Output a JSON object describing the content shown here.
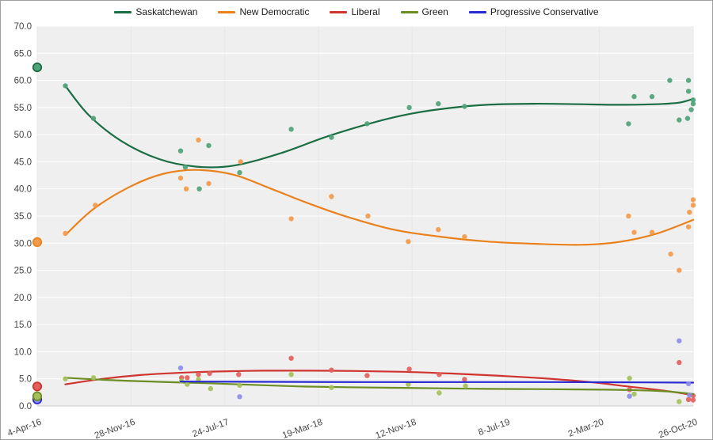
{
  "window": {
    "background": "#ffffff",
    "border_color": "#9f9f9f"
  },
  "chart_data": {
    "type": "scatter",
    "title": "",
    "description": "Saskatchewan provincial polling: poll scatter points with smoothed trend line per party; circled markers at 4-Apr-16 are the 2016 election results",
    "legend_position": "top",
    "grid": true,
    "plot_bg": "#efefef",
    "grid_color_h": "#ffffff",
    "grid_color_v": "#e7e7e7",
    "axis_line_color": "#d2d2d2",
    "tick_text_color": "#444444",
    "ylim": [
      0,
      70
    ],
    "y_tick_step": 5,
    "y_tick_labels": [
      "0.0",
      "5.0",
      "10.0",
      "15.0",
      "20.0",
      "25.0",
      "30.0",
      "35.0",
      "40.0",
      "45.0",
      "50.0",
      "55.0",
      "60.0",
      "65.0",
      "70.0"
    ],
    "x_ticks": [
      "4-Apr-16",
      "28-Nov-16",
      "24-Jul-17",
      "19-Mar-18",
      "12-Nov-18",
      "8-Jul-19",
      "2-Mar-20",
      "26-Oct-20"
    ],
    "x_note": "x values are in tick units: 0 = 4-Apr-16, 7 = 26-Oct-20, linear in time (one tick = 238 days)",
    "series": [
      {
        "name": "Saskatchewan",
        "color": "#1b6d43",
        "marker_color": "#4fa377",
        "election_2016": 62.4,
        "trend": [
          [
            0.3,
            59
          ],
          [
            0.55,
            53.6
          ],
          [
            0.9,
            48.8
          ],
          [
            1.3,
            45.5
          ],
          [
            1.7,
            44.1
          ],
          [
            2.1,
            44.3
          ],
          [
            2.6,
            46.6
          ],
          [
            3.1,
            49.7
          ],
          [
            3.6,
            52.3
          ],
          [
            4.0,
            53.9
          ],
          [
            4.4,
            54.9
          ],
          [
            4.8,
            55.5
          ],
          [
            5.3,
            55.7
          ],
          [
            5.8,
            55.6
          ],
          [
            6.2,
            55.5
          ],
          [
            6.6,
            55.6
          ],
          [
            6.85,
            55.9
          ],
          [
            7.0,
            56.6
          ]
        ],
        "points": [
          [
            0.3,
            59
          ],
          [
            0.6,
            53
          ],
          [
            1.53,
            47
          ],
          [
            1.58,
            44
          ],
          [
            1.73,
            40
          ],
          [
            1.83,
            48
          ],
          [
            2.16,
            43
          ],
          [
            2.71,
            51
          ],
          [
            3.14,
            49.5
          ],
          [
            3.52,
            52
          ],
          [
            3.97,
            55
          ],
          [
            4.28,
            55.7
          ],
          [
            4.56,
            55.2
          ],
          [
            6.31,
            52
          ],
          [
            6.37,
            57
          ],
          [
            6.56,
            57
          ],
          [
            6.75,
            60
          ],
          [
            6.85,
            52.7
          ],
          [
            6.94,
            53
          ],
          [
            6.95,
            60
          ],
          [
            6.95,
            58
          ],
          [
            6.98,
            54.6
          ],
          [
            7.0,
            56.4
          ],
          [
            7.0,
            55.7
          ]
        ]
      },
      {
        "name": "New Democratic",
        "color": "#e9821d",
        "marker_color": "#f29b4b",
        "election_2016": 30.2,
        "trend": [
          [
            0.3,
            31.5
          ],
          [
            0.6,
            36.3
          ],
          [
            1.0,
            40.5
          ],
          [
            1.35,
            42.8
          ],
          [
            1.7,
            43.5
          ],
          [
            2.1,
            42.6
          ],
          [
            2.5,
            40.0
          ],
          [
            2.9,
            37.3
          ],
          [
            3.3,
            34.9
          ],
          [
            3.8,
            32.5
          ],
          [
            4.3,
            31.2
          ],
          [
            4.8,
            30.3
          ],
          [
            5.3,
            29.9
          ],
          [
            5.8,
            29.7
          ],
          [
            6.2,
            30.2
          ],
          [
            6.6,
            31.7
          ],
          [
            7.0,
            34.3
          ]
        ],
        "points": [
          [
            0.3,
            31.8
          ],
          [
            0.62,
            37
          ],
          [
            1.53,
            42
          ],
          [
            1.59,
            40
          ],
          [
            1.72,
            49
          ],
          [
            1.83,
            41
          ],
          [
            2.17,
            45
          ],
          [
            2.71,
            34.5
          ],
          [
            3.14,
            38.6
          ],
          [
            3.53,
            35
          ],
          [
            3.96,
            30.3
          ],
          [
            4.28,
            32.5
          ],
          [
            4.56,
            31.2
          ],
          [
            6.31,
            35
          ],
          [
            6.37,
            32
          ],
          [
            6.56,
            32
          ],
          [
            6.76,
            28
          ],
          [
            6.85,
            25
          ],
          [
            6.95,
            33
          ],
          [
            6.96,
            35.7
          ],
          [
            7.0,
            37
          ],
          [
            7.0,
            38
          ]
        ]
      },
      {
        "name": "Liberal",
        "color": "#cf342e",
        "marker_color": "#e2605c",
        "election_2016": 3.6,
        "trend": [
          [
            0.3,
            4.0
          ],
          [
            0.7,
            5.0
          ],
          [
            1.1,
            5.7
          ],
          [
            1.5,
            6.1
          ],
          [
            1.9,
            6.35
          ],
          [
            2.4,
            6.5
          ],
          [
            2.9,
            6.5
          ],
          [
            3.4,
            6.45
          ],
          [
            3.9,
            6.3
          ],
          [
            4.4,
            6.0
          ],
          [
            4.9,
            5.6
          ],
          [
            5.4,
            5.1
          ],
          [
            5.9,
            4.4
          ],
          [
            6.3,
            3.6
          ],
          [
            6.7,
            2.8
          ],
          [
            7.0,
            2.0
          ]
        ],
        "points": [
          [
            1.54,
            5.2
          ],
          [
            1.6,
            5.2
          ],
          [
            1.72,
            5.8
          ],
          [
            1.84,
            6.0
          ],
          [
            2.15,
            5.8
          ],
          [
            2.71,
            8.8
          ],
          [
            3.14,
            6.6
          ],
          [
            3.52,
            5.6
          ],
          [
            3.97,
            6.8
          ],
          [
            4.29,
            5.8
          ],
          [
            4.56,
            4.9
          ],
          [
            6.32,
            3.0
          ],
          [
            6.85,
            8.0
          ],
          [
            6.95,
            1.2
          ],
          [
            7.0,
            1.9
          ],
          [
            7.0,
            1.1
          ]
        ]
      },
      {
        "name": "Green",
        "color": "#6b8e23",
        "marker_color": "#a4c05a",
        "election_2016": 1.8,
        "trend": [
          [
            0.3,
            5.2
          ],
          [
            0.8,
            4.75
          ],
          [
            1.3,
            4.45
          ],
          [
            1.8,
            4.2
          ],
          [
            2.3,
            3.9
          ],
          [
            2.8,
            3.6
          ],
          [
            3.3,
            3.45
          ],
          [
            3.8,
            3.35
          ],
          [
            4.3,
            3.25
          ],
          [
            4.8,
            3.15
          ],
          [
            5.3,
            3.1
          ],
          [
            5.8,
            3.05
          ],
          [
            6.3,
            2.95
          ],
          [
            6.7,
            2.7
          ],
          [
            7.0,
            2.2
          ]
        ],
        "points": [
          [
            0.3,
            5.0
          ],
          [
            0.6,
            5.2
          ],
          [
            1.54,
            4.6
          ],
          [
            1.6,
            4.0
          ],
          [
            1.72,
            4.9
          ],
          [
            1.85,
            3.2
          ],
          [
            2.16,
            3.8
          ],
          [
            2.71,
            5.8
          ],
          [
            3.14,
            3.4
          ],
          [
            3.96,
            4.0
          ],
          [
            4.29,
            2.4
          ],
          [
            4.57,
            3.7
          ],
          [
            6.32,
            5.1
          ],
          [
            6.37,
            2.2
          ],
          [
            6.85,
            0.8
          ]
        ]
      },
      {
        "name": "Progressive Conservative",
        "color": "#2a2ad4",
        "marker_color": "#8d8deb",
        "election_2016": 1.2,
        "trend": [
          [
            1.53,
            4.5
          ],
          [
            2.5,
            4.45
          ],
          [
            3.5,
            4.4
          ],
          [
            4.5,
            4.4
          ],
          [
            5.5,
            4.4
          ],
          [
            6.5,
            4.35
          ],
          [
            7.0,
            4.3
          ]
        ],
        "points": [
          [
            1.53,
            7.0
          ],
          [
            2.16,
            1.7
          ],
          [
            6.32,
            1.8
          ],
          [
            6.85,
            12.0
          ],
          [
            6.95,
            4.1
          ],
          [
            6.96,
            2.0
          ]
        ]
      }
    ]
  }
}
